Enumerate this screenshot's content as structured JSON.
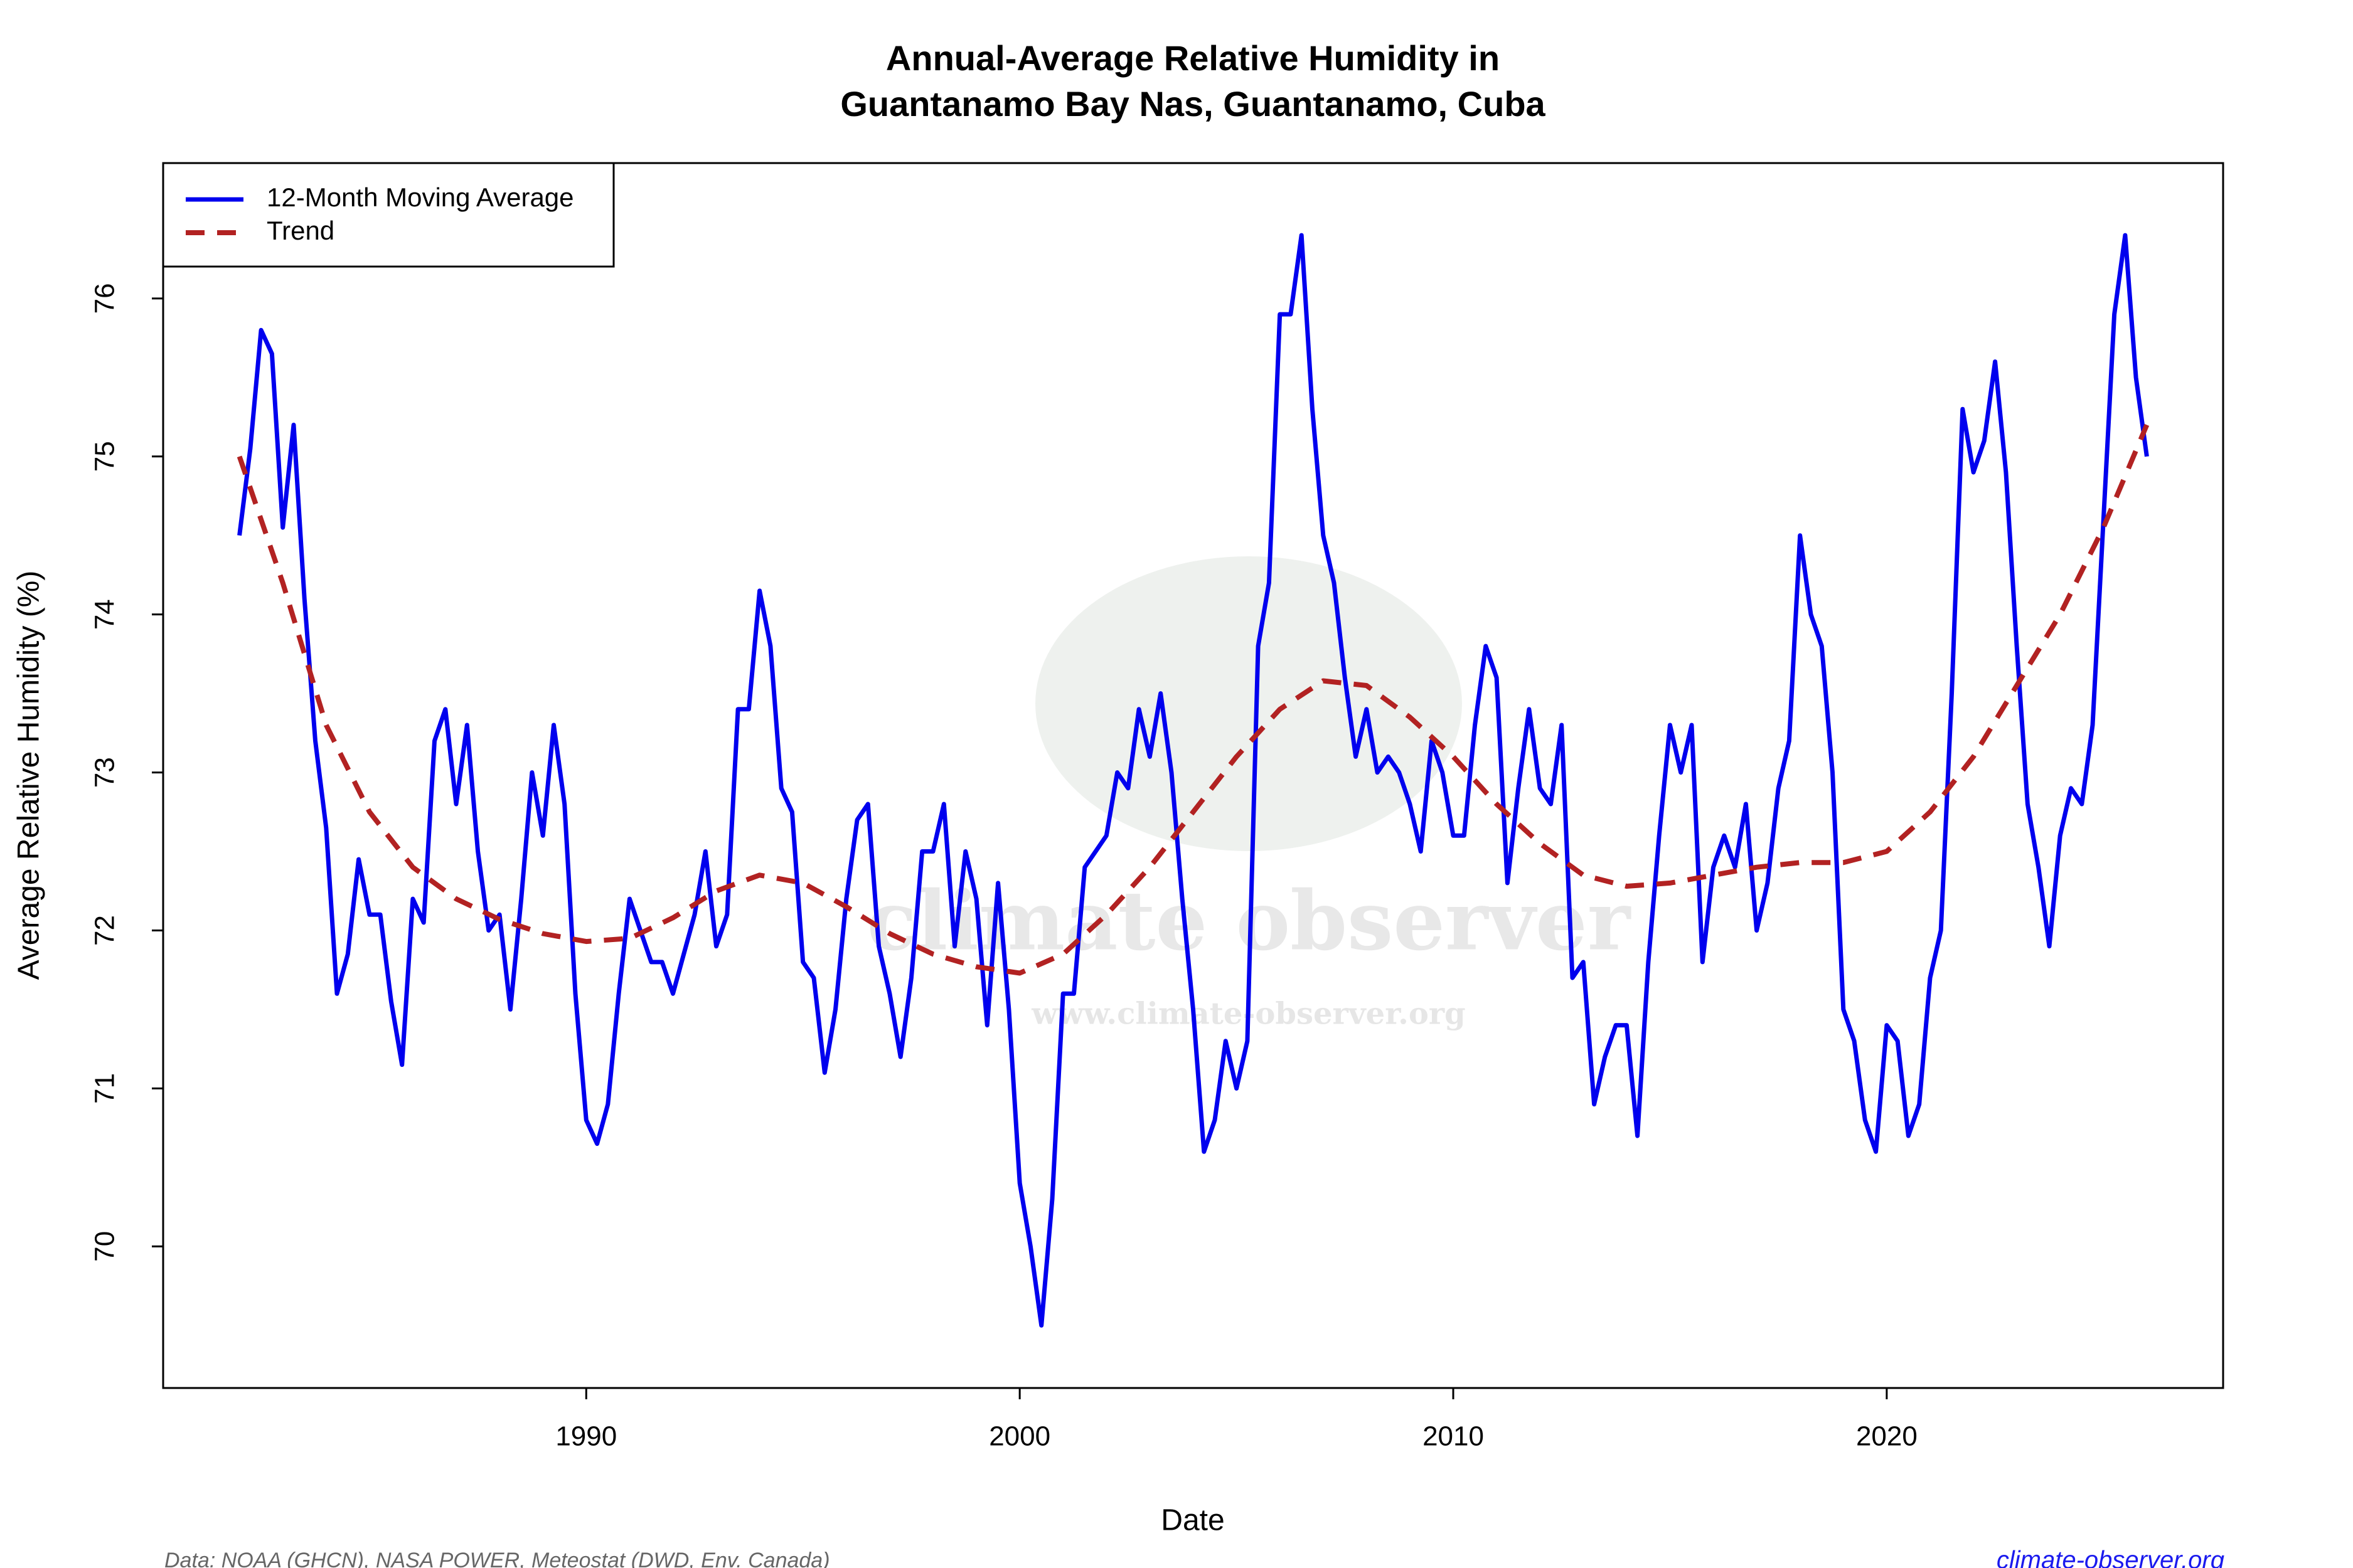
{
  "chart_data": {
    "type": "line",
    "title": [
      "Annual-Average Relative Humidity in",
      "Guantanamo Bay Nas, Guantanamo, Cuba"
    ],
    "x_label": "Date",
    "y_label": "Average Relative Humidity (%)",
    "source": "Data: NOAA (GHCN), NASA POWER, Meteostat (DWD, Env. Canada)",
    "site": "climate-observer.org",
    "watermark": [
      "climate observer",
      "www.climate-observer.org"
    ],
    "legend": "top-left",
    "xlim": [
      1980.24,
      2027.76
    ],
    "ylim": [
      69.104,
      76.857
    ],
    "xticks": [
      1990,
      2000,
      2010,
      2020
    ],
    "yticks": [
      70,
      71,
      72,
      73,
      74,
      75,
      76
    ],
    "x": [
      1982,
      1982.25,
      1982.5,
      1982.75,
      1983,
      1983.25,
      1983.5,
      1983.75,
      1984,
      1984.25,
      1984.5,
      1984.75,
      1985,
      1985.25,
      1985.5,
      1985.75,
      1986,
      1986.25,
      1986.5,
      1986.75,
      1987,
      1987.25,
      1987.5,
      1987.75,
      1988,
      1988.25,
      1988.5,
      1988.75,
      1989,
      1989.25,
      1989.5,
      1989.75,
      1990,
      1990.25,
      1990.5,
      1990.75,
      1991,
      1991.25,
      1991.5,
      1991.75,
      1992,
      1992.25,
      1992.5,
      1992.75,
      1993,
      1993.25,
      1993.5,
      1993.75,
      1994,
      1994.25,
      1994.5,
      1994.75,
      1995,
      1995.25,
      1995.5,
      1995.75,
      1996,
      1996.25,
      1996.5,
      1996.75,
      1997,
      1997.25,
      1997.5,
      1997.75,
      1998,
      1998.25,
      1998.5,
      1998.75,
      1999,
      1999.25,
      1999.5,
      1999.75,
      2000,
      2000.25,
      2000.5,
      2000.75,
      2001,
      2001.25,
      2001.5,
      2001.75,
      2002,
      2002.25,
      2002.5,
      2002.75,
      2003,
      2003.25,
      2003.5,
      2003.75,
      2004,
      2004.25,
      2004.5,
      2004.75,
      2005,
      2005.25,
      2005.5,
      2005.75,
      2006,
      2006.25,
      2006.5,
      2006.75,
      2007,
      2007.25,
      2007.5,
      2007.75,
      2008,
      2008.25,
      2008.5,
      2008.75,
      2009,
      2009.25,
      2009.5,
      2009.75,
      2010,
      2010.25,
      2010.5,
      2010.75,
      2011,
      2011.25,
      2011.5,
      2011.75,
      2012,
      2012.25,
      2012.5,
      2012.75,
      2013,
      2013.25,
      2013.5,
      2013.75,
      2014,
      2014.25,
      2014.5,
      2014.75,
      2015,
      2015.25,
      2015.5,
      2015.75,
      2016,
      2016.25,
      2016.5,
      2016.75,
      2017,
      2017.25,
      2017.5,
      2017.75,
      2018,
      2018.25,
      2018.5,
      2018.75,
      2019,
      2019.25,
      2019.5,
      2019.75,
      2020,
      2020.25,
      2020.5,
      2020.75,
      2021,
      2021.25,
      2021.5,
      2021.75,
      2022,
      2022.25,
      2022.5,
      2022.75,
      2023,
      2023.25,
      2023.5,
      2023.75,
      2024,
      2024.25,
      2024.5,
      2024.75,
      2025,
      2025.25,
      2025.5,
      2025.75,
      2026
    ],
    "series": [
      {
        "name": "12-Month Moving Average",
        "color": "#0000ee",
        "values": [
          74.5,
          75.05,
          75.8,
          75.65,
          74.55,
          75.2,
          74.1,
          73.2,
          72.65,
          71.6,
          71.85,
          72.45,
          72.1,
          72.1,
          71.55,
          71.15,
          72.2,
          72.05,
          73.2,
          73.4,
          72.8,
          73.3,
          72.5,
          72.0,
          72.1,
          71.5,
          72.2,
          73.0,
          72.6,
          73.3,
          72.8,
          71.6,
          70.8,
          70.65,
          70.9,
          71.6,
          72.2,
          72.0,
          71.8,
          71.8,
          71.6,
          71.85,
          72.1,
          72.5,
          71.9,
          72.1,
          73.4,
          73.4,
          74.15,
          73.8,
          72.9,
          72.75,
          71.8,
          71.7,
          71.1,
          71.5,
          72.2,
          72.7,
          72.8,
          71.9,
          71.6,
          71.2,
          71.7,
          72.5,
          72.5,
          72.8,
          71.9,
          72.5,
          72.2,
          71.4,
          72.3,
          71.5,
          70.4,
          70.0,
          69.5,
          70.3,
          71.6,
          71.6,
          72.4,
          72.5,
          72.6,
          73.0,
          72.9,
          73.4,
          73.1,
          73.5,
          73.0,
          72.2,
          71.5,
          70.6,
          70.8,
          71.3,
          71.0,
          71.3,
          73.8,
          74.2,
          75.9,
          75.9,
          76.4,
          75.3,
          74.5,
          74.2,
          73.6,
          73.1,
          73.4,
          73.0,
          73.1,
          73.0,
          72.8,
          72.5,
          73.2,
          73.0,
          72.6,
          72.6,
          73.3,
          73.8,
          73.6,
          72.3,
          72.9,
          73.4,
          72.9,
          72.8,
          73.3,
          71.7,
          71.8,
          70.9,
          71.2,
          71.4,
          71.4,
          70.7,
          71.8,
          72.6,
          73.3,
          73.0,
          73.3,
          71.8,
          72.4,
          72.6,
          72.4,
          72.8,
          72.0,
          72.3,
          72.9,
          73.2,
          74.5,
          74.0,
          73.8,
          73.0,
          71.5,
          71.3,
          70.8,
          70.6,
          71.4,
          71.3,
          70.7,
          70.9,
          71.7,
          72.0,
          73.5,
          75.3,
          74.9,
          75.1,
          75.6,
          74.9,
          73.8,
          72.8,
          72.4,
          71.9,
          72.6,
          72.9,
          72.8,
          73.3,
          74.6,
          75.9,
          76.4,
          75.5,
          75.0
        ]
      },
      {
        "name": "Trend",
        "color": "#b22222",
        "x": [
          1982,
          1983,
          1984,
          1985,
          1986,
          1987,
          1988,
          1989,
          1990,
          1991,
          1992,
          1993,
          1994,
          1995,
          1996,
          1997,
          1998,
          1999,
          2000,
          2001,
          2002,
          2003,
          2004,
          2005,
          2006,
          2007,
          2008,
          2009,
          2010,
          2011,
          2012,
          2013,
          2014,
          2015,
          2016,
          2017,
          2018,
          2019,
          2020,
          2021,
          2022,
          2023,
          2024,
          2025,
          2026
        ],
        "values": [
          75.0,
          74.2,
          73.3,
          72.75,
          72.4,
          72.2,
          72.07,
          71.98,
          71.93,
          71.95,
          72.08,
          72.25,
          72.35,
          72.3,
          72.15,
          71.98,
          71.85,
          71.77,
          71.73,
          71.85,
          72.1,
          72.4,
          72.75,
          73.1,
          73.4,
          73.58,
          73.55,
          73.35,
          73.1,
          72.8,
          72.55,
          72.35,
          72.28,
          72.3,
          72.35,
          72.4,
          72.43,
          72.43,
          72.5,
          72.75,
          73.1,
          73.55,
          74.0,
          74.55,
          75.2
        ]
      }
    ]
  }
}
